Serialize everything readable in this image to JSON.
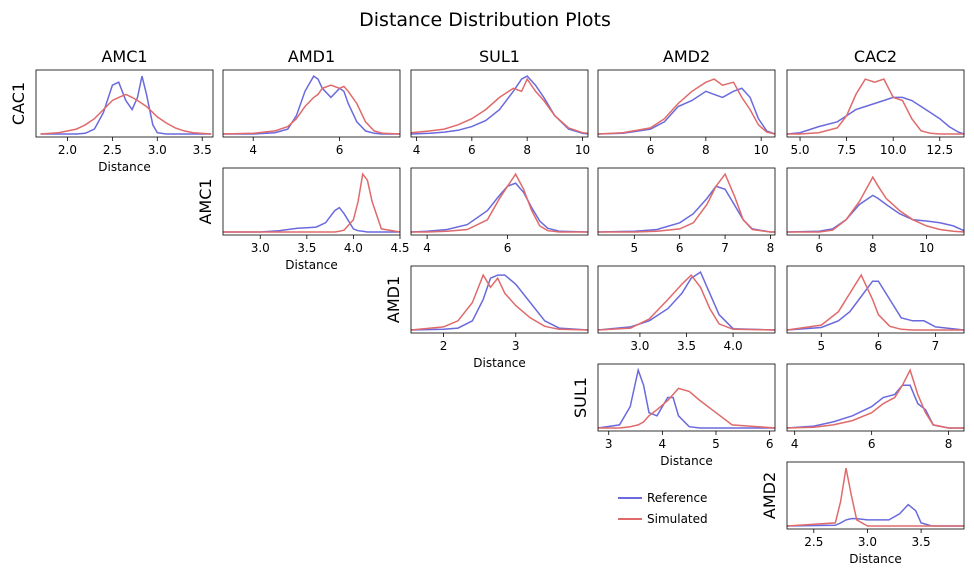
{
  "title": "Distance Distribution Plots",
  "chart_data": [
    {
      "type": "line",
      "title": "AMC1",
      "ylabel": "CAC1",
      "xlabel": "Distance",
      "xlim": [
        1.65,
        3.62
      ],
      "xticks": [
        {
          "value": 2,
          "label": "2.0"
        },
        2.5,
        {
          "value": 3,
          "label": "3.0"
        },
        3.5
      ],
      "ylim": [
        -0.05,
        1.05
      ],
      "x": [
        1.7,
        1.9,
        2.1,
        2.2,
        2.3,
        2.4,
        2.5,
        2.57,
        2.65,
        2.72,
        2.78,
        2.83,
        2.88,
        2.95,
        3.0,
        3.1,
        3.2,
        3.3,
        3.4,
        3.6
      ],
      "series": [
        {
          "name": "Reference",
          "color": "#6a6ade",
          "values": [
            0,
            0,
            0,
            0.01,
            0.08,
            0.35,
            0.8,
            0.85,
            0.55,
            0.4,
            0.6,
            0.95,
            0.65,
            0.15,
            0.02,
            0,
            0,
            0,
            0,
            0
          ]
        },
        {
          "name": "Simulated",
          "color": "#e06a6a",
          "values": [
            0,
            0.02,
            0.08,
            0.15,
            0.25,
            0.4,
            0.55,
            0.6,
            0.65,
            0.6,
            0.55,
            0.5,
            0.45,
            0.35,
            0.28,
            0.18,
            0.1,
            0.05,
            0.02,
            0
          ]
        }
      ]
    },
    {
      "type": "line",
      "title": "AMD1",
      "xlim": [
        3.3,
        7.4
      ],
      "xticks": [
        4,
        6
      ],
      "ylim": [
        -0.05,
        1.05
      ],
      "x": [
        3.3,
        4,
        4.5,
        4.8,
        5,
        5.2,
        5.4,
        5.5,
        5.6,
        5.8,
        6,
        6.1,
        6.2,
        6.4,
        6.6,
        6.8,
        7,
        7.4
      ],
      "series": [
        {
          "name": "Reference",
          "color": "#6a6ade",
          "values": [
            0,
            0,
            0.02,
            0.08,
            0.3,
            0.7,
            0.95,
            0.9,
            0.75,
            0.6,
            0.75,
            0.7,
            0.5,
            0.2,
            0.05,
            0.01,
            0,
            0
          ]
        },
        {
          "name": "Simulated",
          "color": "#e06a6a",
          "values": [
            0,
            0.01,
            0.05,
            0.12,
            0.25,
            0.45,
            0.6,
            0.65,
            0.75,
            0.8,
            0.75,
            0.78,
            0.7,
            0.5,
            0.2,
            0.05,
            0.01,
            0
          ]
        }
      ]
    },
    {
      "type": "line",
      "title": "SUL1",
      "xlim": [
        3.8,
        10.2
      ],
      "xticks": [
        4,
        6,
        8,
        10
      ],
      "ylim": [
        -0.05,
        1.05
      ],
      "x": [
        3.8,
        4.5,
        5,
        5.5,
        6,
        6.5,
        7,
        7.5,
        7.8,
        8,
        8.3,
        8.6,
        9,
        9.5,
        10,
        10.2
      ],
      "series": [
        {
          "name": "Reference",
          "color": "#6a6ade",
          "values": [
            0,
            0.01,
            0.03,
            0.06,
            0.12,
            0.22,
            0.4,
            0.7,
            0.9,
            0.95,
            0.8,
            0.6,
            0.3,
            0.08,
            0.01,
            0
          ]
        },
        {
          "name": "Simulated",
          "color": "#e06a6a",
          "values": [
            0.02,
            0.05,
            0.08,
            0.15,
            0.25,
            0.4,
            0.6,
            0.75,
            0.7,
            0.9,
            0.7,
            0.55,
            0.3,
            0.1,
            0.02,
            0.01
          ]
        }
      ]
    },
    {
      "type": "line",
      "title": "AMD2",
      "xlim": [
        4.1,
        10.5
      ],
      "xticks": [
        6,
        8,
        10
      ],
      "ylim": [
        -0.05,
        1.05
      ],
      "x": [
        4.1,
        5,
        6,
        6.5,
        7,
        7.5,
        8,
        8.3,
        8.6,
        9,
        9.3,
        9.6,
        9.9,
        10.2,
        10.5
      ],
      "series": [
        {
          "name": "Reference",
          "color": "#6a6ade",
          "values": [
            0,
            0.01,
            0.08,
            0.2,
            0.45,
            0.55,
            0.7,
            0.65,
            0.6,
            0.7,
            0.75,
            0.6,
            0.25,
            0.05,
            0
          ]
        },
        {
          "name": "Simulated",
          "color": "#e06a6a",
          "values": [
            0,
            0.02,
            0.1,
            0.25,
            0.5,
            0.7,
            0.85,
            0.9,
            0.8,
            0.85,
            0.6,
            0.4,
            0.15,
            0.03,
            0
          ]
        }
      ]
    },
    {
      "type": "line",
      "title": "CAC2",
      "xlim": [
        4.3,
        13.8
      ],
      "xticks": [
        {
          "value": 5,
          "label": "5.0"
        },
        7.5,
        {
          "value": 10,
          "label": "10.0"
        },
        12.5
      ],
      "ylim": [
        -0.05,
        1.05
      ],
      "x": [
        4.3,
        5,
        6,
        7,
        7.5,
        8,
        8.5,
        9,
        9.5,
        10,
        10.5,
        11,
        11.5,
        12,
        12.5,
        13,
        13.5,
        13.8
      ],
      "series": [
        {
          "name": "Reference",
          "color": "#6a6ade",
          "values": [
            0,
            0.02,
            0.12,
            0.2,
            0.3,
            0.4,
            0.45,
            0.5,
            0.55,
            0.6,
            0.6,
            0.55,
            0.45,
            0.35,
            0.25,
            0.12,
            0.03,
            0
          ]
        },
        {
          "name": "Simulated",
          "color": "#e06a6a",
          "values": [
            0,
            0,
            0.02,
            0.1,
            0.3,
            0.65,
            0.9,
            0.85,
            0.9,
            0.6,
            0.55,
            0.25,
            0.05,
            0.01,
            0,
            0,
            0,
            0
          ]
        }
      ]
    },
    {
      "type": "line",
      "ylabel": "AMC1",
      "xlabel": "Distance",
      "xlim": [
        2.6,
        4.5
      ],
      "xticks": [
        {
          "value": 3,
          "label": "3.0"
        },
        3.5,
        {
          "value": 4,
          "label": "4.0"
        },
        4.5
      ],
      "ylim": [
        -0.05,
        1.05
      ],
      "x": [
        2.6,
        3,
        3.2,
        3.4,
        3.5,
        3.6,
        3.7,
        3.8,
        3.85,
        3.9,
        4,
        4.05,
        4.1,
        4.15,
        4.2,
        4.3,
        4.5
      ],
      "series": [
        {
          "name": "Reference",
          "color": "#6a6ade",
          "values": [
            0,
            0,
            0.02,
            0.06,
            0.07,
            0.08,
            0.15,
            0.35,
            0.4,
            0.3,
            0.05,
            0.02,
            0.01,
            0,
            0,
            0,
            0
          ]
        },
        {
          "name": "Simulated",
          "color": "#e06a6a",
          "values": [
            0,
            0,
            0,
            0,
            0,
            0,
            0,
            0,
            0.01,
            0.03,
            0.2,
            0.5,
            0.95,
            0.85,
            0.5,
            0.05,
            0
          ]
        }
      ]
    },
    {
      "type": "line",
      "xlim": [
        3.6,
        8
      ],
      "xticks": [
        4,
        6
      ],
      "ylim": [
        -0.05,
        1.05
      ],
      "x": [
        3.6,
        4,
        4.5,
        5,
        5.5,
        5.8,
        6,
        6.2,
        6.4,
        6.6,
        6.8,
        7,
        7.3,
        8
      ],
      "series": [
        {
          "name": "Reference",
          "color": "#6a6ade",
          "values": [
            0,
            0.01,
            0.04,
            0.12,
            0.35,
            0.6,
            0.75,
            0.8,
            0.65,
            0.4,
            0.18,
            0.06,
            0.01,
            0
          ]
        },
        {
          "name": "Simulated",
          "color": "#e06a6a",
          "values": [
            0,
            0,
            0.01,
            0.04,
            0.2,
            0.55,
            0.75,
            0.95,
            0.7,
            0.35,
            0.1,
            0.02,
            0,
            0
          ]
        }
      ]
    },
    {
      "type": "line",
      "xlim": [
        4.2,
        8.1
      ],
      "xticks": [
        5,
        6,
        7,
        8
      ],
      "ylim": [
        -0.05,
        1.05
      ],
      "x": [
        4.2,
        5,
        5.5,
        6,
        6.3,
        6.6,
        6.8,
        7,
        7.2,
        7.4,
        7.6,
        8,
        8.1
      ],
      "series": [
        {
          "name": "Reference",
          "color": "#6a6ade",
          "values": [
            0,
            0.01,
            0.04,
            0.15,
            0.3,
            0.55,
            0.75,
            0.7,
            0.45,
            0.2,
            0.05,
            0,
            0
          ]
        },
        {
          "name": "Simulated",
          "color": "#e06a6a",
          "values": [
            0,
            0,
            0.01,
            0.05,
            0.15,
            0.45,
            0.75,
            0.95,
            0.6,
            0.2,
            0.04,
            0,
            0
          ]
        }
      ]
    },
    {
      "type": "line",
      "xlim": [
        4.8,
        11.4
      ],
      "xticks": [
        6,
        8,
        10
      ],
      "ylim": [
        -0.05,
        1.05
      ],
      "x": [
        4.8,
        6,
        6.5,
        7,
        7.5,
        8,
        8.2,
        8.5,
        9,
        9.5,
        10,
        10.5,
        11,
        11.4
      ],
      "series": [
        {
          "name": "Reference",
          "color": "#6a6ade",
          "values": [
            0,
            0.01,
            0.05,
            0.2,
            0.45,
            0.6,
            0.55,
            0.45,
            0.3,
            0.2,
            0.18,
            0.15,
            0.1,
            0.02
          ]
        },
        {
          "name": "Simulated",
          "color": "#e06a6a",
          "values": [
            0,
            0,
            0.03,
            0.2,
            0.5,
            0.9,
            0.75,
            0.55,
            0.35,
            0.2,
            0.1,
            0.04,
            0.01,
            0
          ]
        }
      ]
    },
    {
      "type": "line",
      "ylabel": "AMD1",
      "xlabel": "Distance",
      "xlim": [
        1.55,
        4
      ],
      "xticks": [
        2,
        3
      ],
      "ylim": [
        -0.05,
        1.05
      ],
      "x": [
        1.55,
        2,
        2.2,
        2.4,
        2.55,
        2.65,
        2.75,
        2.85,
        3,
        3.2,
        3.4,
        3.6,
        4
      ],
      "series": [
        {
          "name": "Reference",
          "color": "#6a6ade",
          "values": [
            0,
            0.01,
            0.03,
            0.15,
            0.5,
            0.85,
            0.9,
            0.9,
            0.75,
            0.45,
            0.15,
            0.03,
            0
          ]
        },
        {
          "name": "Simulated",
          "color": "#e06a6a",
          "values": [
            0,
            0.05,
            0.15,
            0.45,
            0.9,
            0.7,
            0.85,
            0.6,
            0.4,
            0.2,
            0.06,
            0.01,
            0
          ]
        }
      ]
    },
    {
      "type": "line",
      "xlim": [
        2.55,
        4.45
      ],
      "xticks": [
        {
          "value": 3,
          "label": "3.0"
        },
        3.5,
        {
          "value": 4,
          "label": "4.0"
        }
      ],
      "ylim": [
        -0.05,
        1.05
      ],
      "x": [
        2.55,
        2.9,
        3.1,
        3.3,
        3.45,
        3.55,
        3.65,
        3.75,
        3.85,
        4,
        4.45
      ],
      "series": [
        {
          "name": "Reference",
          "color": "#6a6ade",
          "values": [
            0,
            0.05,
            0.15,
            0.35,
            0.6,
            0.85,
            0.95,
            0.6,
            0.25,
            0.02,
            0
          ]
        },
        {
          "name": "Simulated",
          "color": "#e06a6a",
          "values": [
            0,
            0.03,
            0.18,
            0.5,
            0.75,
            0.9,
            0.7,
            0.35,
            0.1,
            0.01,
            0
          ]
        }
      ]
    },
    {
      "type": "line",
      "xlim": [
        4.4,
        7.5
      ],
      "xticks": [
        5,
        6,
        7
      ],
      "ylim": [
        -0.05,
        1.05
      ],
      "x": [
        4.4,
        5,
        5.3,
        5.5,
        5.7,
        5.9,
        6,
        6.2,
        6.4,
        6.6,
        6.8,
        7,
        7.5
      ],
      "series": [
        {
          "name": "Reference",
          "color": "#6a6ade",
          "values": [
            0,
            0.04,
            0.15,
            0.3,
            0.55,
            0.8,
            0.8,
            0.5,
            0.2,
            0.15,
            0.15,
            0.05,
            0
          ]
        },
        {
          "name": "Simulated",
          "color": "#e06a6a",
          "values": [
            0,
            0.08,
            0.3,
            0.6,
            0.9,
            0.5,
            0.25,
            0.06,
            0.01,
            0,
            0,
            0,
            0
          ]
        }
      ]
    },
    {
      "type": "line",
      "ylabel": "SUL1",
      "xlabel": "Distance",
      "xlim": [
        2.8,
        6.1
      ],
      "xticks": [
        3,
        4,
        5,
        6
      ],
      "ylim": [
        -0.05,
        1.05
      ],
      "x": [
        2.8,
        3.2,
        3.4,
        3.55,
        3.65,
        3.75,
        3.9,
        4.1,
        4.2,
        4.3,
        4.5,
        4.7,
        5,
        5.3,
        6.1
      ],
      "series": [
        {
          "name": "Reference",
          "color": "#6a6ade",
          "values": [
            0,
            0.05,
            0.35,
            0.95,
            0.7,
            0.25,
            0.2,
            0.5,
            0.5,
            0.2,
            0.02,
            0,
            0,
            0,
            0
          ]
        },
        {
          "name": "Simulated",
          "color": "#e06a6a",
          "values": [
            0,
            0,
            0.02,
            0.05,
            0.1,
            0.2,
            0.3,
            0.45,
            0.55,
            0.65,
            0.6,
            0.45,
            0.25,
            0.05,
            0
          ]
        }
      ]
    },
    {
      "type": "line",
      "xlim": [
        3.8,
        8.4
      ],
      "xticks": [
        4,
        6,
        8
      ],
      "ylim": [
        -0.05,
        1.05
      ],
      "x": [
        3.8,
        4.5,
        5,
        5.5,
        6,
        6.3,
        6.6,
        6.8,
        7,
        7.2,
        7.4,
        7.6,
        8,
        8.4
      ],
      "series": [
        {
          "name": "Reference",
          "color": "#6a6ade",
          "values": [
            0,
            0.03,
            0.1,
            0.2,
            0.35,
            0.5,
            0.55,
            0.7,
            0.7,
            0.4,
            0.3,
            0.05,
            0,
            0
          ]
        },
        {
          "name": "Simulated",
          "color": "#e06a6a",
          "values": [
            0,
            0.01,
            0.05,
            0.12,
            0.25,
            0.4,
            0.5,
            0.7,
            0.95,
            0.55,
            0.25,
            0.05,
            0,
            0
          ]
        }
      ]
    },
    {
      "type": "line",
      "ylabel": "AMD2",
      "xlabel": "Distance",
      "xlim": [
        2.25,
        3.9
      ],
      "xticks": [
        2.5,
        {
          "value": 3,
          "label": "3.0"
        },
        3.5
      ],
      "ylim": [
        -0.05,
        1.05
      ],
      "x": [
        2.25,
        2.7,
        2.75,
        2.8,
        2.85,
        2.9,
        3,
        3.2,
        3.3,
        3.38,
        3.45,
        3.5,
        3.6,
        3.9
      ],
      "series": [
        {
          "name": "Reference",
          "color": "#6a6ade",
          "values": [
            0,
            0.01,
            0.05,
            0.1,
            0.12,
            0.12,
            0.1,
            0.1,
            0.2,
            0.35,
            0.25,
            0.05,
            0,
            0
          ]
        },
        {
          "name": "Simulated",
          "color": "#e06a6a",
          "values": [
            0,
            0.05,
            0.4,
            0.95,
            0.5,
            0.1,
            0,
            0,
            0,
            0,
            0,
            0,
            0,
            0
          ]
        }
      ]
    }
  ]
}
